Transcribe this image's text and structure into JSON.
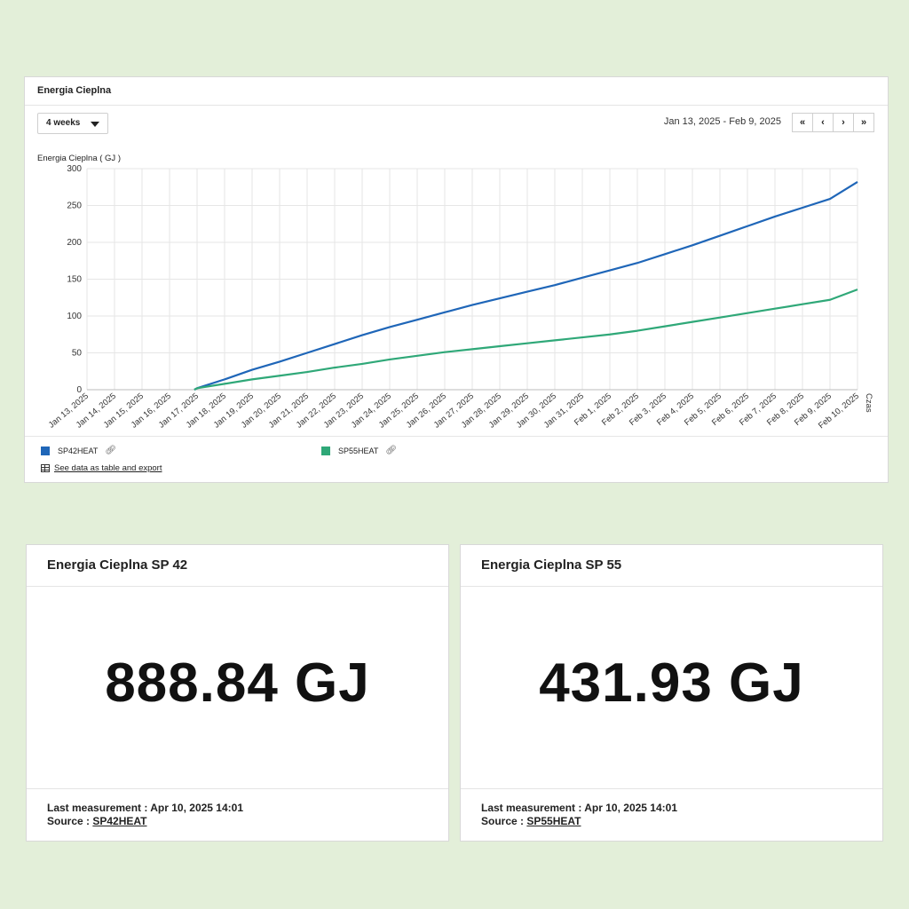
{
  "panel": {
    "title": "Energia Cieplna",
    "period_select": "4 weeks",
    "date_range": "Jan 13, 2025 - Feb 9, 2025",
    "nav": [
      {
        "name": "nav-first-button",
        "label": "«"
      },
      {
        "name": "nav-prev-button",
        "label": "‹"
      },
      {
        "name": "nav-next-button",
        "label": "›"
      },
      {
        "name": "nav-last-button",
        "label": "»"
      }
    ],
    "export_label": "See data as table and export",
    "legend": [
      {
        "name": "SP42HEAT",
        "color": "#1f66b8"
      },
      {
        "name": "SP55HEAT",
        "color": "#2fa878"
      }
    ]
  },
  "chart_data": {
    "type": "line",
    "ylabel": "Energia Cieplna ( GJ )",
    "xlabel": "Czas",
    "ylim": [
      0,
      300
    ],
    "yticks": [
      0,
      50,
      100,
      150,
      200,
      250,
      300
    ],
    "x": [
      "Jan 13, 2025",
      "Jan 14, 2025",
      "Jan 15, 2025",
      "Jan 16, 2025",
      "Jan 17, 2025",
      "Jan 18, 2025",
      "Jan 19, 2025",
      "Jan 20, 2025",
      "Jan 21, 2025",
      "Jan 22, 2025",
      "Jan 23, 2025",
      "Jan 24, 2025",
      "Jan 25, 2025",
      "Jan 26, 2025",
      "Jan 27, 2025",
      "Jan 28, 2025",
      "Jan 29, 2025",
      "Jan 30, 2025",
      "Jan 31, 2025",
      "Feb 1, 2025",
      "Feb 2, 2025",
      "Feb 3, 2025",
      "Feb 4, 2025",
      "Feb 5, 2025",
      "Feb 6, 2025",
      "Feb 7, 2025",
      "Feb 8, 2025",
      "Feb 9, 2025",
      "Feb 10, 2025"
    ],
    "grid": true,
    "series": [
      {
        "name": "SP42HEAT",
        "color": "#1f66b8",
        "points": [
          [
            "Jan 16, 2025 +0.5",
            0
          ],
          [
            "Jan 17, 2025",
            2
          ],
          [
            "Jan 18, 2025",
            14
          ],
          [
            "Jan 19, 2025",
            27
          ],
          [
            "Jan 20, 2025",
            38
          ],
          [
            "Jan 21, 2025",
            50
          ],
          [
            "Jan 22, 2025",
            62
          ],
          [
            "Jan 23, 2025",
            74
          ],
          [
            "Jan 24, 2025",
            85
          ],
          [
            "Jan 25, 2025",
            95
          ],
          [
            "Jan 26, 2025",
            105
          ],
          [
            "Jan 27, 2025",
            115
          ],
          [
            "Jan 28, 2025",
            124
          ],
          [
            "Jan 29, 2025",
            133
          ],
          [
            "Jan 30, 2025",
            142
          ],
          [
            "Jan 31, 2025",
            152
          ],
          [
            "Feb 1, 2025",
            162
          ],
          [
            "Feb 2, 2025",
            172
          ],
          [
            "Feb 3, 2025",
            184
          ],
          [
            "Feb 4, 2025",
            196
          ],
          [
            "Feb 5, 2025",
            209
          ],
          [
            "Feb 6, 2025",
            222
          ],
          [
            "Feb 7, 2025",
            235
          ],
          [
            "Feb 8, 2025",
            247
          ],
          [
            "Feb 9, 2025",
            259
          ],
          [
            "Feb 10, 2025",
            282
          ]
        ],
        "values": [
          null,
          null,
          null,
          null,
          2,
          14,
          27,
          38,
          50,
          62,
          74,
          85,
          95,
          105,
          115,
          124,
          133,
          142,
          152,
          162,
          172,
          184,
          196,
          209,
          222,
          235,
          247,
          259,
          282
        ]
      },
      {
        "name": "SP55HEAT",
        "color": "#2fa878",
        "values": [
          null,
          null,
          null,
          null,
          2,
          8,
          14,
          19,
          24,
          30,
          35,
          41,
          46,
          51,
          55,
          59,
          63,
          67,
          71,
          75,
          80,
          86,
          92,
          98,
          104,
          110,
          116,
          122,
          136
        ]
      }
    ]
  },
  "cards": [
    {
      "title": "Energia Cieplna SP 42",
      "value": "888.84 GJ",
      "last_measurement": "Last measurement : Apr 10, 2025 14:01",
      "source_label": "Source : ",
      "source_link": "SP42HEAT"
    },
    {
      "title": "Energia Cieplna SP 55",
      "value": "431.93 GJ",
      "last_measurement": "Last measurement : Apr 10, 2025 14:01",
      "source_label": "Source : ",
      "source_link": "SP55HEAT"
    }
  ]
}
